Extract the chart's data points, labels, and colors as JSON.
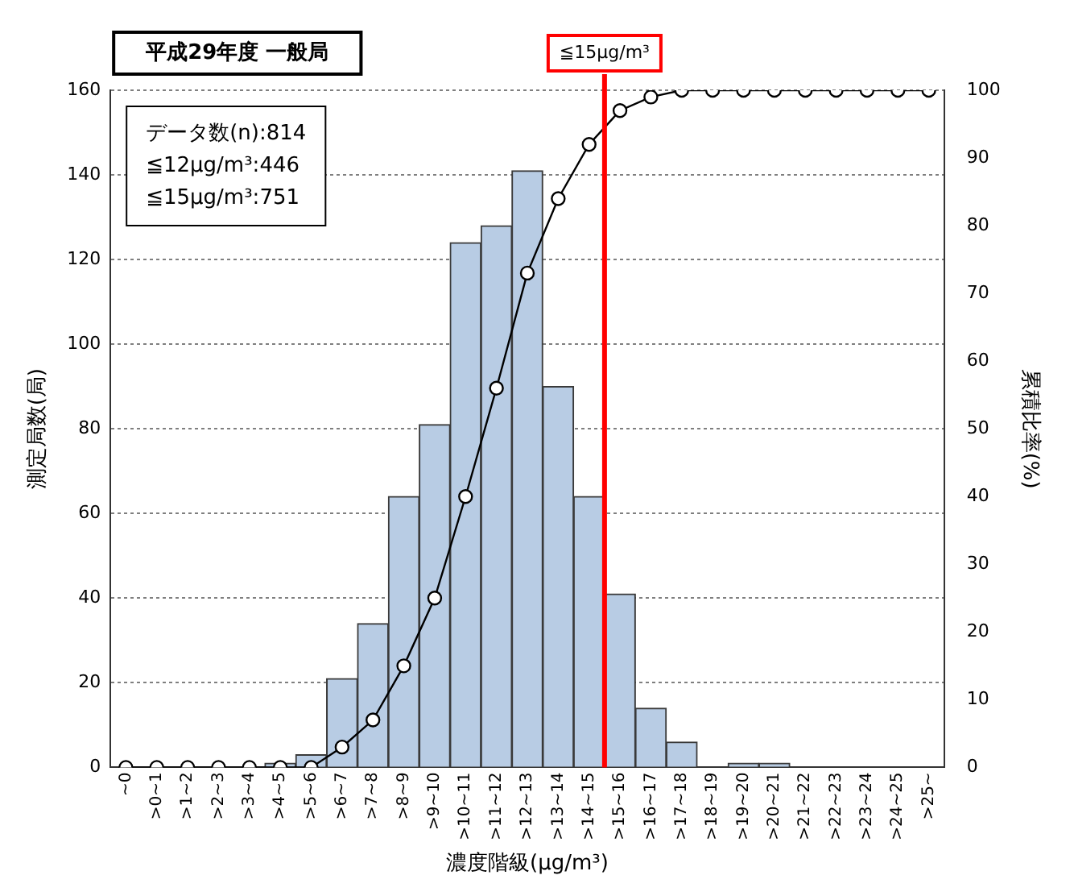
{
  "chart_data": {
    "type": "bar",
    "title": "平成29年度 一般局",
    "xlabel": "濃度階級(μg/m³)",
    "ylabel": "測定局数(局)",
    "y2label": "累積比率(%)",
    "categories": [
      "~0",
      ">0~1",
      ">1~2",
      ">2~3",
      ">3~4",
      ">4~5",
      ">5~6",
      ">6~7",
      ">7~8",
      ">8~9",
      ">9~10",
      ">10~11",
      ">11~12",
      ">12~13",
      ">13~14",
      ">14~15",
      ">15~16",
      ">16~17",
      ">17~18",
      ">18~19",
      ">19~20",
      ">20~21",
      ">21~22",
      ">22~23",
      ">23~24",
      ">24~25",
      ">25~"
    ],
    "series": [
      {
        "color": "#b8cce4",
        "values": [
          0,
          0,
          0,
          0,
          0,
          1,
          3,
          21,
          34,
          64,
          81,
          124,
          128,
          141,
          90,
          64,
          41,
          14,
          6,
          0,
          1,
          1,
          0,
          0,
          0,
          0,
          0
        ]
      },
      {
        "type": "line",
        "axis": "y2",
        "color": "#000000",
        "marker": "circle",
        "values": [
          0,
          0,
          0,
          0,
          0,
          0,
          0,
          3,
          7,
          15,
          25,
          40,
          56,
          73,
          84,
          92,
          97,
          99,
          100,
          100,
          100,
          100,
          100,
          100,
          100,
          100,
          100
        ]
      }
    ],
    "ylim": [
      0,
      160
    ],
    "yticks": [
      0,
      20,
      40,
      60,
      80,
      100,
      120,
      140,
      160
    ],
    "y2lim": [
      0,
      100
    ],
    "y2ticks": [
      0,
      10,
      20,
      30,
      40,
      50,
      60,
      70,
      80,
      90,
      100
    ],
    "grid": "y",
    "legend": false,
    "ref_lines": [
      {
        "axis": "x",
        "value": ">14~15",
        "label": "≦15μg/m³",
        "color": "#ff0000"
      }
    ],
    "annotations": [
      "データ数(n):814",
      "≦12μg/m³:446",
      "≦15μg/m³:751"
    ]
  }
}
